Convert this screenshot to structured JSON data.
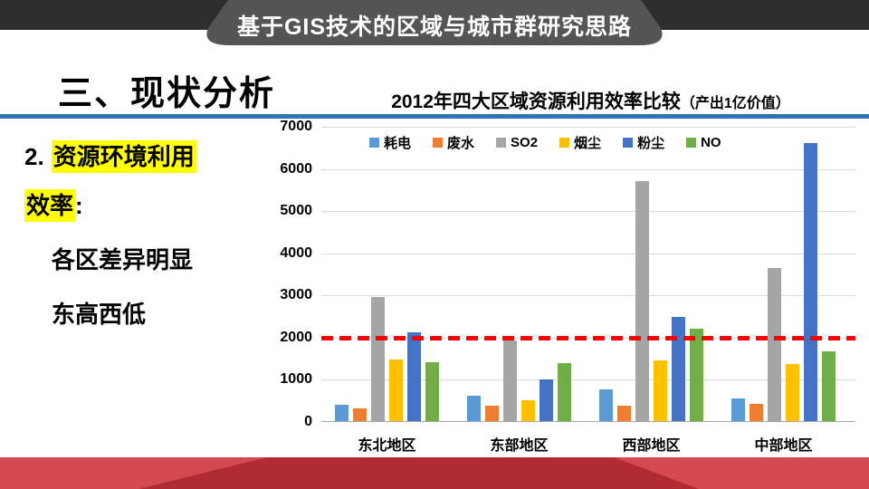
{
  "banner": {
    "title": "基于GIS技术的区域与城市群研究思路"
  },
  "heading": {
    "title": "三、现状分析"
  },
  "sidebar": {
    "number": "2.",
    "highlight1": "资源环境利用",
    "highlight2": "效率",
    "colon": ":",
    "point1": "各区差异明显",
    "point2": "东高西低"
  },
  "chart_title": {
    "main": "2012年四大区域资源利用效率比较",
    "paren": "（产出1亿价值）"
  },
  "chart_data": {
    "type": "bar",
    "title": "2012年四大区域资源利用效率比较（产出1亿价值）",
    "categories": [
      "东北地区",
      "东部地区",
      "西部地区",
      "中部地区"
    ],
    "series": [
      {
        "name": "耗电",
        "color": "#5B9BD5",
        "values": [
          380,
          600,
          750,
          540
        ]
      },
      {
        "name": "废水",
        "color": "#ED7D31",
        "values": [
          310,
          360,
          370,
          400
        ]
      },
      {
        "name": "SO2",
        "color": "#A5A5A5",
        "values": [
          2950,
          1920,
          5690,
          3620
        ]
      },
      {
        "name": "烟尘",
        "color": "#FFC000",
        "values": [
          1470,
          500,
          1440,
          1360
        ]
      },
      {
        "name": "粉尘",
        "color": "#4472C4",
        "values": [
          2110,
          990,
          2480,
          6600
        ]
      },
      {
        "name": "NO",
        "color": "#70AD47",
        "values": [
          1390,
          1380,
          2200,
          1660
        ]
      }
    ],
    "ylim": [
      0,
      7000
    ],
    "ytick_step": 1000,
    "yticks": [
      "0",
      "1000",
      "2000",
      "3000",
      "4000",
      "5000",
      "6000",
      "7000"
    ],
    "reference_line": {
      "value": 2000,
      "color": "#FF0000",
      "style": "dashed"
    },
    "grid": true,
    "legend_position": "top"
  },
  "palette": {
    "banner_bar": "#2E2E2E",
    "banner_trapezoid": "#555555",
    "divider_blue": "#2E74B6",
    "ribbon_light": "#D4494F",
    "ribbon_dark": "#B02B32",
    "highlight_yellow": "#FFFF00"
  }
}
